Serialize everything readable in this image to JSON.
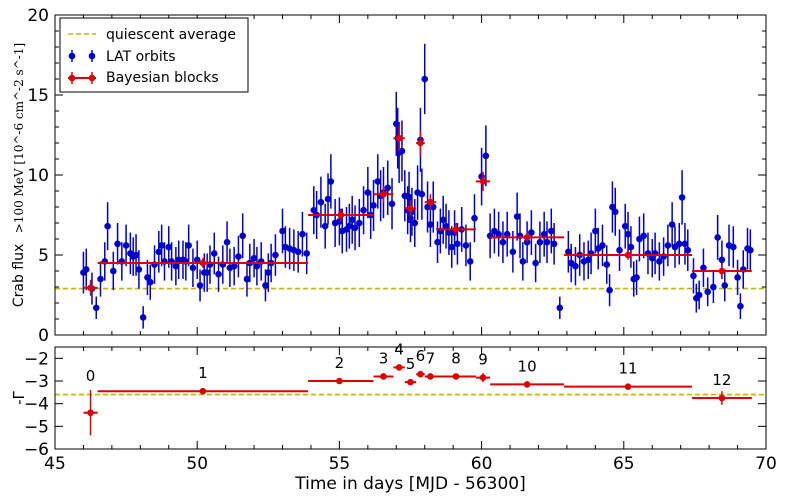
{
  "chart_data": [
    {
      "type": "scatter",
      "panel": "top",
      "ylabel_main": "Crab flux",
      "ylabel_math": ">100 MeV [10^-6 cm^-2 s^-1]",
      "xlim": [
        45,
        70
      ],
      "ylim": [
        0,
        20
      ],
      "yticks": [
        0,
        5,
        10,
        15,
        20
      ],
      "quiescent_average": 2.9,
      "legend": {
        "placement": "top-left",
        "entries": [
          "quiescent average",
          "LAT orbits",
          "Bayesian blocks"
        ]
      },
      "colors": {
        "quiescent": "#c8b400",
        "lat": "#0000cc",
        "blocks": "#dd0000"
      },
      "lat_orbits": [
        [
          46.0,
          3.9,
          1.3
        ],
        [
          46.1,
          4.1,
          1.3
        ],
        [
          46.3,
          2.9,
          1.0
        ],
        [
          46.45,
          1.7,
          0.7
        ],
        [
          46.6,
          3.5,
          1.1
        ],
        [
          46.75,
          4.6,
          1.2
        ],
        [
          46.85,
          6.8,
          1.5
        ],
        [
          47.05,
          4.0,
          1.2
        ],
        [
          47.2,
          5.7,
          1.3
        ],
        [
          47.35,
          4.6,
          1.2
        ],
        [
          47.5,
          5.6,
          1.3
        ],
        [
          47.65,
          5.1,
          1.3
        ],
        [
          47.75,
          4.9,
          1.2
        ],
        [
          47.85,
          5.0,
          1.3
        ],
        [
          47.95,
          4.1,
          1.2
        ],
        [
          48.1,
          1.1,
          0.7
        ],
        [
          48.25,
          3.6,
          1.1
        ],
        [
          48.35,
          3.3,
          1.1
        ],
        [
          48.5,
          4.4,
          1.2
        ],
        [
          48.65,
          5.2,
          1.3
        ],
        [
          48.75,
          5.6,
          1.3
        ],
        [
          48.85,
          4.6,
          1.2
        ],
        [
          49.0,
          5.5,
          1.3
        ],
        [
          49.1,
          4.6,
          1.2
        ],
        [
          49.25,
          4.3,
          1.2
        ],
        [
          49.35,
          4.7,
          1.2
        ],
        [
          49.5,
          4.7,
          1.2
        ],
        [
          49.6,
          4.6,
          1.2
        ],
        [
          49.7,
          5.6,
          1.3
        ],
        [
          49.85,
          4.2,
          1.2
        ],
        [
          50.0,
          4.7,
          1.2
        ],
        [
          50.1,
          3.1,
          1.0
        ],
        [
          50.25,
          3.9,
          1.2
        ],
        [
          50.35,
          3.9,
          1.2
        ],
        [
          50.45,
          4.4,
          1.2
        ],
        [
          50.6,
          5.1,
          1.3
        ],
        [
          50.75,
          3.8,
          1.1
        ],
        [
          50.9,
          4.4,
          1.2
        ],
        [
          51.05,
          5.8,
          1.3
        ],
        [
          51.15,
          4.2,
          1.2
        ],
        [
          51.3,
          4.3,
          1.2
        ],
        [
          51.45,
          4.9,
          1.3
        ],
        [
          51.6,
          6.2,
          1.4
        ],
        [
          51.75,
          3.5,
          1.1
        ],
        [
          51.85,
          4.5,
          1.2
        ],
        [
          52.0,
          4.8,
          1.2
        ],
        [
          52.1,
          4.3,
          1.2
        ],
        [
          52.25,
          4.6,
          1.2
        ],
        [
          52.4,
          3.1,
          1.0
        ],
        [
          52.5,
          3.9,
          1.2
        ],
        [
          52.6,
          4.5,
          1.2
        ],
        [
          52.75,
          5.0,
          1.3
        ],
        [
          53.0,
          6.5,
          1.4
        ],
        [
          53.1,
          5.5,
          1.3
        ],
        [
          53.25,
          5.4,
          1.3
        ],
        [
          53.4,
          5.3,
          1.3
        ],
        [
          53.55,
          5.2,
          1.3
        ],
        [
          53.7,
          6.3,
          1.4
        ],
        [
          53.85,
          5.1,
          1.3
        ],
        [
          54.1,
          7.8,
          1.5
        ],
        [
          54.2,
          7.5,
          1.5
        ],
        [
          54.35,
          8.3,
          1.6
        ],
        [
          54.5,
          6.8,
          1.4
        ],
        [
          54.6,
          8.5,
          1.6
        ],
        [
          54.7,
          9.6,
          1.7
        ],
        [
          54.85,
          7.0,
          1.5
        ],
        [
          55.0,
          7.1,
          1.5
        ],
        [
          55.1,
          6.5,
          1.4
        ],
        [
          55.25,
          6.6,
          1.4
        ],
        [
          55.35,
          6.8,
          1.4
        ],
        [
          55.45,
          7.2,
          1.5
        ],
        [
          55.55,
          6.7,
          1.4
        ],
        [
          55.7,
          7.0,
          1.5
        ],
        [
          55.85,
          7.8,
          1.5
        ],
        [
          56.0,
          8.9,
          1.6
        ],
        [
          56.1,
          7.5,
          1.5
        ],
        [
          56.2,
          8.1,
          1.6
        ],
        [
          56.35,
          9.6,
          1.7
        ],
        [
          56.45,
          8.7,
          1.6
        ],
        [
          56.55,
          8.9,
          1.6
        ],
        [
          56.7,
          9.2,
          1.7
        ],
        [
          56.85,
          8.2,
          1.6
        ],
        [
          57.0,
          13.2,
          2.0
        ],
        [
          57.05,
          12.3,
          1.9
        ],
        [
          57.1,
          11.4,
          1.9
        ],
        [
          57.2,
          11.5,
          1.9
        ],
        [
          57.3,
          8.7,
          1.6
        ],
        [
          57.4,
          7.8,
          1.5
        ],
        [
          57.45,
          8.6,
          1.6
        ],
        [
          57.5,
          7.3,
          1.5
        ],
        [
          57.55,
          7.7,
          1.5
        ],
        [
          57.65,
          7.0,
          1.5
        ],
        [
          57.75,
          8.9,
          1.7
        ],
        [
          57.85,
          12.2,
          2.0
        ],
        [
          57.9,
          8.8,
          1.6
        ],
        [
          58.0,
          16.0,
          2.2
        ],
        [
          58.1,
          8.0,
          1.6
        ],
        [
          58.2,
          6.9,
          1.4
        ],
        [
          58.3,
          8.0,
          1.6
        ],
        [
          58.45,
          5.8,
          1.3
        ],
        [
          58.55,
          6.5,
          1.4
        ],
        [
          58.65,
          7.2,
          1.5
        ],
        [
          58.75,
          6.8,
          1.4
        ],
        [
          58.85,
          6.4,
          1.4
        ],
        [
          58.95,
          5.5,
          1.3
        ],
        [
          59.05,
          6.4,
          1.4
        ],
        [
          59.15,
          5.7,
          1.3
        ],
        [
          59.3,
          6.6,
          1.4
        ],
        [
          59.45,
          5.6,
          1.3
        ],
        [
          59.6,
          4.6,
          1.2
        ],
        [
          59.75,
          7.3,
          1.5
        ],
        [
          60.0,
          9.9,
          1.8
        ],
        [
          60.15,
          11.2,
          1.9
        ],
        [
          60.3,
          6.2,
          1.4
        ],
        [
          60.45,
          6.5,
          1.4
        ],
        [
          60.6,
          6.3,
          1.4
        ],
        [
          60.75,
          5.8,
          1.3
        ],
        [
          60.9,
          6.3,
          1.4
        ],
        [
          61.1,
          5.2,
          1.3
        ],
        [
          61.25,
          7.4,
          1.5
        ],
        [
          61.35,
          6.2,
          1.4
        ],
        [
          61.45,
          4.6,
          1.2
        ],
        [
          61.6,
          5.8,
          1.3
        ],
        [
          61.75,
          6.4,
          1.4
        ],
        [
          61.9,
          4.5,
          1.2
        ],
        [
          62.05,
          5.8,
          1.3
        ],
        [
          62.2,
          6.3,
          1.4
        ],
        [
          62.3,
          5.8,
          1.3
        ],
        [
          62.45,
          6.5,
          1.4
        ],
        [
          62.55,
          5.7,
          1.3
        ],
        [
          62.75,
          1.7,
          0.7
        ],
        [
          63.05,
          5.2,
          1.3
        ],
        [
          63.15,
          4.5,
          1.2
        ],
        [
          63.3,
          4.3,
          1.2
        ],
        [
          63.45,
          5.0,
          1.3
        ],
        [
          63.6,
          4.6,
          1.2
        ],
        [
          63.75,
          4.7,
          1.2
        ],
        [
          63.85,
          5.1,
          1.3
        ],
        [
          64.0,
          6.5,
          1.4
        ],
        [
          64.1,
          5.4,
          1.3
        ],
        [
          64.25,
          5.6,
          1.3
        ],
        [
          64.4,
          4.4,
          1.2
        ],
        [
          64.5,
          2.8,
          1.0
        ],
        [
          64.6,
          8.0,
          1.6
        ],
        [
          64.7,
          7.7,
          1.5
        ],
        [
          64.85,
          5.3,
          1.3
        ],
        [
          65.05,
          6.8,
          1.4
        ],
        [
          65.15,
          6.3,
          1.4
        ],
        [
          65.25,
          5.5,
          1.3
        ],
        [
          65.35,
          3.5,
          1.1
        ],
        [
          65.45,
          3.6,
          1.1
        ],
        [
          65.55,
          6.0,
          1.4
        ],
        [
          65.7,
          6.2,
          1.4
        ],
        [
          65.85,
          5.1,
          1.3
        ],
        [
          66.0,
          4.8,
          1.2
        ],
        [
          66.1,
          5.1,
          1.3
        ],
        [
          66.25,
          4.6,
          1.2
        ],
        [
          66.4,
          4.9,
          1.2
        ],
        [
          66.55,
          5.6,
          1.3
        ],
        [
          66.7,
          6.9,
          1.4
        ],
        [
          66.8,
          5.5,
          1.3
        ],
        [
          66.95,
          5.7,
          1.3
        ],
        [
          67.05,
          8.6,
          1.7
        ],
        [
          67.15,
          5.7,
          1.3
        ],
        [
          67.25,
          5.3,
          1.3
        ],
        [
          67.45,
          3.7,
          1.1
        ],
        [
          67.55,
          2.3,
          0.9
        ],
        [
          67.65,
          2.5,
          0.9
        ],
        [
          67.8,
          4.2,
          1.2
        ],
        [
          67.95,
          2.7,
          0.9
        ],
        [
          68.15,
          3.0,
          1.0
        ],
        [
          68.3,
          6.1,
          1.4
        ],
        [
          68.45,
          4.7,
          1.2
        ],
        [
          68.55,
          3.1,
          1.0
        ],
        [
          68.7,
          5.6,
          1.3
        ],
        [
          68.85,
          5.5,
          1.3
        ],
        [
          69.0,
          3.6,
          1.1
        ],
        [
          69.1,
          1.8,
          0.8
        ],
        [
          69.2,
          4.1,
          1.2
        ],
        [
          69.35,
          5.4,
          1.3
        ],
        [
          69.45,
          5.3,
          1.3
        ]
      ],
      "bayesian_blocks": [
        {
          "x0": 46.0,
          "x1": 46.5,
          "y": 2.95,
          "err": 0.5
        },
        {
          "x0": 46.5,
          "x1": 53.9,
          "y": 4.5,
          "err": 0.3
        },
        {
          "x0": 53.9,
          "x1": 56.2,
          "y": 7.5,
          "err": 0.4
        },
        {
          "x0": 56.2,
          "x1": 56.9,
          "y": 8.8,
          "err": 0.5
        },
        {
          "x0": 56.9,
          "x1": 57.3,
          "y": 12.3,
          "err": 0.8
        },
        {
          "x0": 57.3,
          "x1": 57.7,
          "y": 7.9,
          "err": 0.5
        },
        {
          "x0": 57.7,
          "x1": 58.0,
          "y": 12.0,
          "err": 0.8
        },
        {
          "x0": 58.0,
          "x1": 58.4,
          "y": 8.3,
          "err": 0.5
        },
        {
          "x0": 58.4,
          "x1": 59.8,
          "y": 6.6,
          "err": 0.4
        },
        {
          "x0": 59.8,
          "x1": 60.3,
          "y": 9.6,
          "err": 0.6
        },
        {
          "x0": 60.3,
          "x1": 62.9,
          "y": 6.1,
          "err": 0.3
        },
        {
          "x0": 62.9,
          "x1": 67.4,
          "y": 5.0,
          "err": 0.3
        },
        {
          "x0": 67.4,
          "x1": 69.5,
          "y": 4.0,
          "err": 0.4
        }
      ]
    },
    {
      "type": "scatter",
      "panel": "bottom",
      "ylabel": "-Γ",
      "xlabel": "Time in days [MJD - 56300]",
      "xlim": [
        45,
        70
      ],
      "ylim": [
        -6,
        -1.5
      ],
      "xticks": [
        45,
        50,
        55,
        60,
        65,
        70
      ],
      "yticks": [
        -6,
        -5,
        -4,
        -3,
        -2
      ],
      "quiescent_average": -3.6,
      "blocks": [
        {
          "label": "0",
          "x": 46.25,
          "x0": 46.0,
          "x1": 46.5,
          "y": -4.4,
          "err": 1.0
        },
        {
          "label": "1",
          "x": 50.2,
          "x0": 46.5,
          "x1": 53.9,
          "y": -3.45,
          "err": 0.1
        },
        {
          "label": "2",
          "x": 55.0,
          "x0": 53.9,
          "x1": 56.2,
          "y": -3.0,
          "err": 0.1
        },
        {
          "label": "3",
          "x": 56.55,
          "x0": 56.2,
          "x1": 56.9,
          "y": -2.8,
          "err": 0.1
        },
        {
          "label": "4",
          "x": 57.1,
          "x0": 56.9,
          "x1": 57.3,
          "y": -2.4,
          "err": 0.1
        },
        {
          "label": "5",
          "x": 57.5,
          "x0": 57.3,
          "x1": 57.7,
          "y": -3.05,
          "err": 0.1
        },
        {
          "label": "6",
          "x": 57.85,
          "x0": 57.7,
          "x1": 58.0,
          "y": -2.7,
          "err": 0.1
        },
        {
          "label": "7",
          "x": 58.2,
          "x0": 58.0,
          "x1": 58.4,
          "y": -2.8,
          "err": 0.1
        },
        {
          "label": "8",
          "x": 59.1,
          "x0": 58.4,
          "x1": 59.8,
          "y": -2.8,
          "err": 0.1
        },
        {
          "label": "9",
          "x": 60.05,
          "x0": 59.8,
          "x1": 60.3,
          "y": -2.85,
          "err": 0.2
        },
        {
          "label": "10",
          "x": 61.6,
          "x0": 60.3,
          "x1": 62.9,
          "y": -3.15,
          "err": 0.1
        },
        {
          "label": "11",
          "x": 65.15,
          "x0": 62.9,
          "x1": 67.4,
          "y": -3.25,
          "err": 0.1
        },
        {
          "label": "12",
          "x": 68.45,
          "x0": 67.4,
          "x1": 69.5,
          "y": -3.75,
          "err": 0.3
        }
      ]
    }
  ]
}
